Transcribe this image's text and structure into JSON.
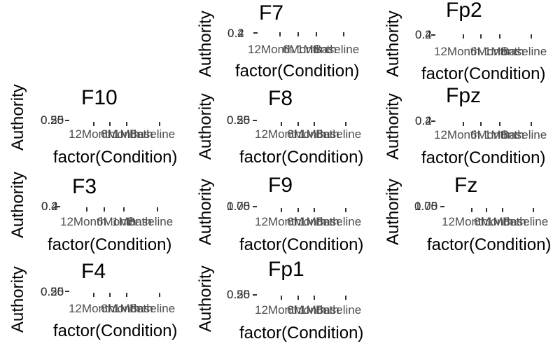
{
  "chart_data": [
    {
      "type": "scatter",
      "title": "F10",
      "xlabel": "factor(Condition)",
      "ylabel": "Authority",
      "ytick_labels": [
        "0.25",
        "0.50"
      ],
      "categories": [
        "12Month",
        "6Month",
        "1Month",
        "Baseline"
      ]
    },
    {
      "type": "scatter",
      "title": "F3",
      "xlabel": "factor(Condition)",
      "ylabel": "Authority",
      "ytick_labels": [
        "0.2",
        "0.4"
      ],
      "categories": [
        "12Month",
        "6Month",
        "1Month",
        "Baseline"
      ]
    },
    {
      "type": "scatter",
      "title": "F4",
      "xlabel": "factor(Condition)",
      "ylabel": "Authority",
      "ytick_labels": [
        "0.25",
        "0.50"
      ],
      "categories": [
        "12Month",
        "6Month",
        "1Month",
        "Baseline"
      ]
    },
    {
      "type": "scatter",
      "title": "F7",
      "xlabel": "factor(Condition)",
      "ylabel": "Authority",
      "ytick_labels": [
        "0.2",
        "0.4"
      ],
      "categories": [
        "12Month",
        "6Month",
        "1Month",
        "Baseline"
      ]
    },
    {
      "type": "scatter",
      "title": "F8",
      "xlabel": "factor(Condition)",
      "ylabel": "Authority",
      "ytick_labels": [
        "0.25",
        "0.50"
      ],
      "categories": [
        "12Month",
        "6Month",
        "1Month",
        "Baseline"
      ]
    },
    {
      "type": "scatter",
      "title": "F9",
      "xlabel": "factor(Condition)",
      "ylabel": "Authority",
      "ytick_labels": [
        "0.75",
        "1.00"
      ],
      "categories": [
        "12Month",
        "6Month",
        "1Month",
        "Baseline"
      ]
    },
    {
      "type": "scatter",
      "title": "Fp1",
      "xlabel": "factor(Condition)",
      "ylabel": "Authority",
      "ytick_labels": [
        "0.25",
        "0.50"
      ],
      "categories": [
        "12Month",
        "6Month",
        "1Month",
        "Baseline"
      ]
    },
    {
      "type": "scatter",
      "title": "Fp2",
      "xlabel": "factor(Condition)",
      "ylabel": "Authority",
      "ytick_labels": [
        "0.2",
        "0.4"
      ],
      "categories": [
        "12Month",
        "6Month",
        "1Month",
        "Baseline"
      ]
    },
    {
      "type": "scatter",
      "title": "Fpz",
      "xlabel": "factor(Condition)",
      "ylabel": "Authority",
      "ytick_labels": [
        "0.2",
        "0.4"
      ],
      "categories": [
        "12Month",
        "6Month",
        "1Month",
        "Baseline"
      ]
    },
    {
      "type": "scatter",
      "title": "Fz",
      "xlabel": "factor(Condition)",
      "ylabel": "Authority",
      "ytick_labels": [
        "0.75",
        "1.00"
      ],
      "categories": [
        "12Month",
        "6Month",
        "1Month",
        "Baseline"
      ]
    }
  ]
}
